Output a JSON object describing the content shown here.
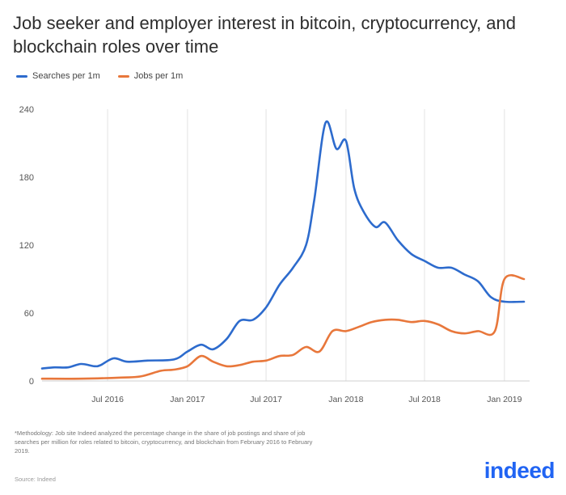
{
  "chart_data": {
    "type": "line",
    "title": "Job seeker and employer interest in bitcoin, cryptocurrency, and blockchain roles over time",
    "xlabel": "",
    "ylabel": "",
    "ylim": [
      0,
      240
    ],
    "yticks": [
      "0",
      "60",
      "120",
      "180",
      "240"
    ],
    "xlim": [
      "2016-02-01",
      "2019-02-28"
    ],
    "xticks": [
      {
        "label": "Jul 2016",
        "date": "2016-07-01"
      },
      {
        "label": "Jan 2017",
        "date": "2017-01-01"
      },
      {
        "label": "Jul 2017",
        "date": "2017-07-01"
      },
      {
        "label": "Jan 2018",
        "date": "2018-01-01"
      },
      {
        "label": "Jul 2018",
        "date": "2018-07-01"
      },
      {
        "label": "Jan 2019",
        "date": "2019-01-01"
      }
    ],
    "grid": "vertical",
    "legend_position": "top-left",
    "series": [
      {
        "name": "Searches per 1m",
        "color": "#2d6bcd",
        "points": [
          [
            "2016-02-01",
            11
          ],
          [
            "2016-03-01",
            12
          ],
          [
            "2016-04-01",
            12
          ],
          [
            "2016-05-01",
            15
          ],
          [
            "2016-06-01",
            13
          ],
          [
            "2016-06-15",
            14
          ],
          [
            "2016-07-15",
            20
          ],
          [
            "2016-08-15",
            17
          ],
          [
            "2016-10-01",
            18
          ],
          [
            "2016-12-01",
            19
          ],
          [
            "2017-01-01",
            26
          ],
          [
            "2017-02-01",
            32
          ],
          [
            "2017-03-01",
            28
          ],
          [
            "2017-04-01",
            37
          ],
          [
            "2017-05-01",
            53
          ],
          [
            "2017-06-01",
            54
          ],
          [
            "2017-07-01",
            65
          ],
          [
            "2017-08-01",
            85
          ],
          [
            "2017-09-01",
            100
          ],
          [
            "2017-10-01",
            120
          ],
          [
            "2017-10-20",
            160
          ],
          [
            "2017-11-15",
            228
          ],
          [
            "2017-12-10",
            205
          ],
          [
            "2018-01-01",
            212
          ],
          [
            "2018-01-20",
            170
          ],
          [
            "2018-02-10",
            150
          ],
          [
            "2018-03-10",
            136
          ],
          [
            "2018-04-01",
            140
          ],
          [
            "2018-05-01",
            124
          ],
          [
            "2018-06-01",
            112
          ],
          [
            "2018-07-01",
            106
          ],
          [
            "2018-08-01",
            100
          ],
          [
            "2018-09-01",
            100
          ],
          [
            "2018-10-01",
            94
          ],
          [
            "2018-11-01",
            88
          ],
          [
            "2018-12-01",
            74
          ],
          [
            "2019-01-01",
            70
          ],
          [
            "2019-02-15",
            70
          ]
        ]
      },
      {
        "name": "Jobs per 1m",
        "color": "#e8773b",
        "points": [
          [
            "2016-02-01",
            2
          ],
          [
            "2016-05-01",
            2
          ],
          [
            "2016-08-01",
            3
          ],
          [
            "2016-09-15",
            4
          ],
          [
            "2016-11-01",
            9
          ],
          [
            "2016-12-01",
            10
          ],
          [
            "2017-01-01",
            13
          ],
          [
            "2017-02-01",
            22
          ],
          [
            "2017-03-01",
            17
          ],
          [
            "2017-04-01",
            13
          ],
          [
            "2017-05-01",
            14
          ],
          [
            "2017-06-01",
            17
          ],
          [
            "2017-07-01",
            18
          ],
          [
            "2017-08-01",
            22
          ],
          [
            "2017-09-01",
            23
          ],
          [
            "2017-10-01",
            30
          ],
          [
            "2017-11-01",
            26
          ],
          [
            "2017-12-01",
            44
          ],
          [
            "2018-01-01",
            44
          ],
          [
            "2018-02-01",
            48
          ],
          [
            "2018-03-01",
            52
          ],
          [
            "2018-04-01",
            54
          ],
          [
            "2018-05-01",
            54
          ],
          [
            "2018-06-01",
            52
          ],
          [
            "2018-07-01",
            53
          ],
          [
            "2018-08-01",
            50
          ],
          [
            "2018-09-01",
            44
          ],
          [
            "2018-10-01",
            42
          ],
          [
            "2018-11-01",
            44
          ],
          [
            "2018-12-10",
            44
          ],
          [
            "2019-01-01",
            90
          ],
          [
            "2019-02-15",
            90
          ]
        ]
      }
    ]
  },
  "footnote": "*Methodology: Job site Indeed analyzed the percentage change in the share of job postings and share of job searches per million for roles related to bitcoin, cryptocurrency, and blockchain from February 2016 to February 2019.",
  "source": "Source: Indeed",
  "logo": "indeed"
}
